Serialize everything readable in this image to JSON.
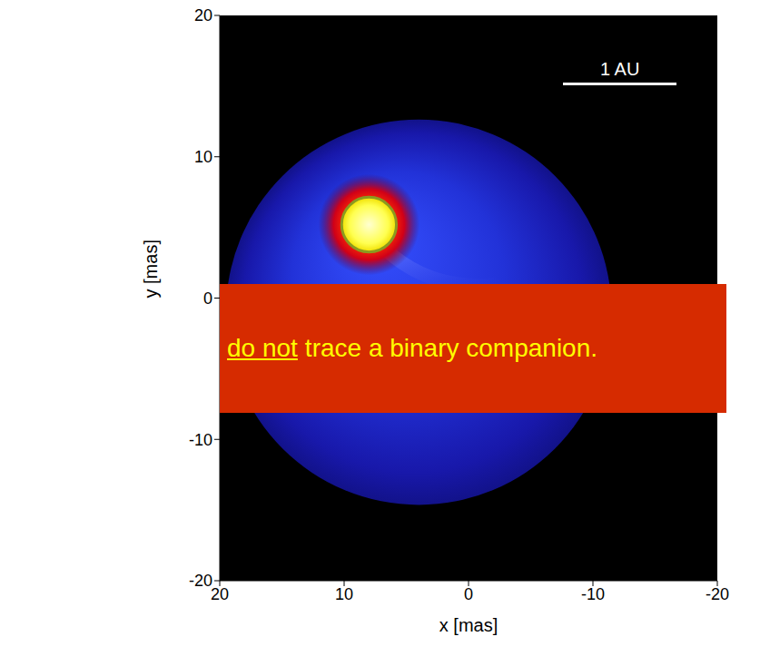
{
  "chart_data": {
    "type": "image",
    "xlabel": "x [mas]",
    "ylabel": "y [mas]",
    "xlim": [
      20,
      -20
    ],
    "ylim": [
      -20,
      20
    ],
    "xticks": [
      20,
      10,
      0,
      -10,
      -20
    ],
    "yticks": [
      -20,
      -10,
      0,
      10,
      20
    ],
    "grid": false,
    "star": {
      "x": 8,
      "y": 5.2,
      "radius": 2.2
    },
    "shell": {
      "x": 4,
      "y": -1,
      "radius": 15.5
    },
    "scale_bar": {
      "label": "1 AU",
      "length": 9.1
    },
    "banner": [
      {
        "text": "do not",
        "underline": true
      },
      {
        "text": "trace a binary companion.",
        "underline": false
      }
    ]
  }
}
